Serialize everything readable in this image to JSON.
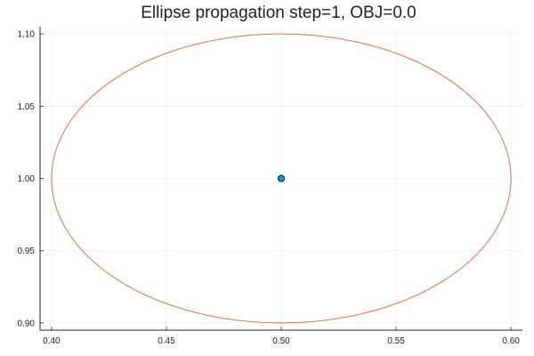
{
  "chart_data": {
    "type": "scatter",
    "title": "Ellipse propagation step=1, OBJ=0.0",
    "xlabel": "",
    "ylabel": "",
    "xlim": [
      0.395,
      0.605
    ],
    "ylim": [
      0.895,
      1.105
    ],
    "xticks": [
      0.4,
      0.45,
      0.5,
      0.55,
      0.6
    ],
    "xtick_labels": [
      "0.40",
      "0.45",
      "0.50",
      "0.55",
      "0.60"
    ],
    "yticks": [
      0.9,
      0.95,
      1.0,
      1.05,
      1.1
    ],
    "ytick_labels": [
      "0.90",
      "0.95",
      "1.00",
      "1.05",
      "1.10"
    ],
    "grid": true,
    "legend": "none",
    "ellipse": {
      "center": [
        0.5,
        1.0
      ],
      "x_radius": 0.1,
      "y_radius": 0.1,
      "color": "#e26f46"
    },
    "points": [
      {
        "x": 0.5,
        "y": 1.0,
        "color": "#009af9"
      }
    ]
  }
}
